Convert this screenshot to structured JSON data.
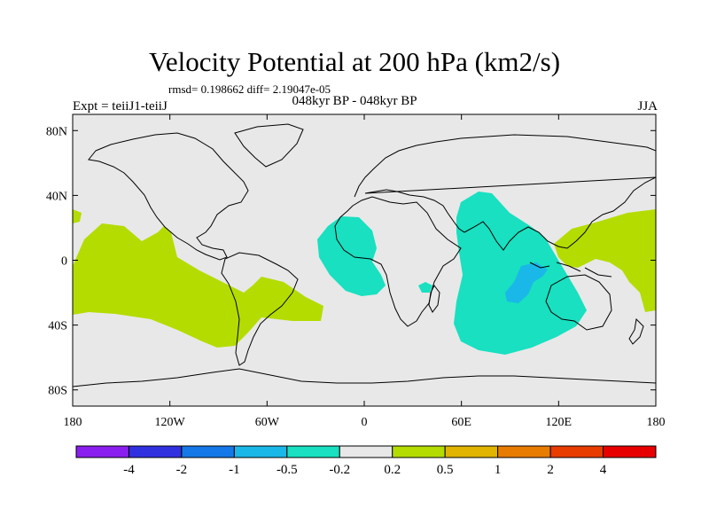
{
  "title": "Velocity Potential at 200 hPa (km2/s)",
  "stats": "rmsd= 0.198662 diff= 2.19047e-05",
  "period": "048kyr BP - 048kyr BP",
  "left_label": "Expt = teiiJ1-teiiJ",
  "right_label": "JJA",
  "lat_ticks": [
    {
      "label": "80N",
      "lat": 80
    },
    {
      "label": "40N",
      "lat": 40
    },
    {
      "label": "0",
      "lat": 0
    },
    {
      "label": "40S",
      "lat": -40
    },
    {
      "label": "80S",
      "lat": -80
    }
  ],
  "lon_ticks": [
    {
      "label": "180",
      "lon": -180
    },
    {
      "label": "120W",
      "lon": -120
    },
    {
      "label": "60W",
      "lon": -60
    },
    {
      "label": "0",
      "lon": 0
    },
    {
      "label": "60E",
      "lon": 60
    },
    {
      "label": "120E",
      "lon": 120
    },
    {
      "label": "180",
      "lon": 180
    }
  ],
  "colorbar": {
    "colors": [
      "#8a1ef0",
      "#3030e0",
      "#1478e8",
      "#1ab8e8",
      "#18e0c0",
      "#e8e8e8",
      "#b4dc00",
      "#e0b400",
      "#e87c00",
      "#e83c00",
      "#e80000"
    ],
    "labels": [
      "-4",
      "-2",
      "-1",
      "-0.5",
      "-0.2",
      "0.2",
      "0.5",
      "1",
      "2",
      "4"
    ]
  },
  "colors": {
    "background": "#e8e8e8",
    "positive": "#b4dc00",
    "negative": "#18e0c0",
    "strong_negative": "#1ab8e8"
  }
}
